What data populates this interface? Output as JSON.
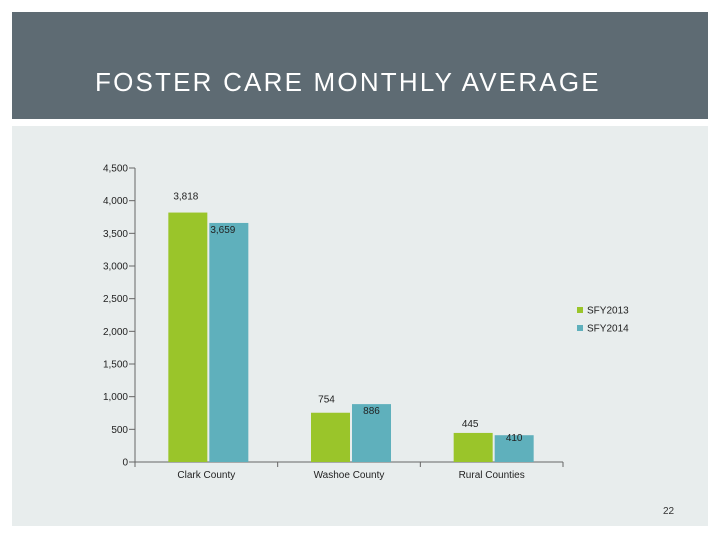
{
  "slide": {
    "title": "FOSTER CARE MONTHLY AVERAGE",
    "page_number": "22"
  },
  "colors": {
    "header_bg": "#5e6b73",
    "panel_bg": "#e8eded",
    "series_2013": "#9ac52a",
    "series_2014": "#5fb0bc"
  },
  "chart_data": {
    "type": "bar",
    "title": "",
    "xlabel": "",
    "ylabel": "",
    "categories": [
      "Clark County",
      "Washoe County",
      "Rural Counties"
    ],
    "series": [
      {
        "name": "SFY2013",
        "values": [
          3818,
          754,
          445
        ],
        "labels": [
          "3,818",
          "754",
          "445"
        ]
      },
      {
        "name": "SFY2014",
        "values": [
          3659,
          886,
          410
        ],
        "labels": [
          "3,659",
          "886",
          "410"
        ]
      }
    ],
    "ylim": [
      0,
      4500
    ],
    "yticks": [
      0,
      500,
      1000,
      1500,
      2000,
      2500,
      3000,
      3500,
      4000,
      4500
    ],
    "ytick_labels": [
      "0",
      "500",
      "1,000",
      "1,500",
      "2,000",
      "2,500",
      "3,000",
      "3,500",
      "4,000",
      "4,500"
    ],
    "grid": false,
    "legend_position": "right"
  }
}
